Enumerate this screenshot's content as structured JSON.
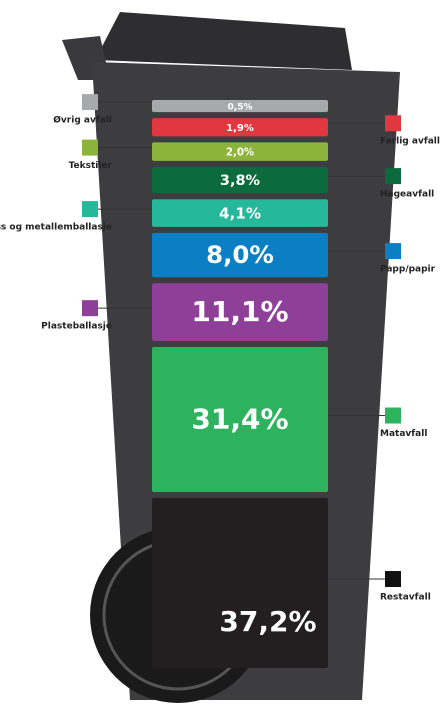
{
  "chart_data": {
    "type": "stacked_bin",
    "categories": [
      "Øvrig avfall",
      "Farlig avfall",
      "Tekstiler",
      "Hageavfall",
      "Glass og metallemballasje",
      "Papp/papir",
      "Plasteballasje",
      "Matavfall",
      "Restavfall"
    ],
    "values": [
      0.5,
      1.9,
      2.0,
      3.8,
      4.1,
      8.0,
      11.1,
      31.4,
      37.2
    ],
    "value_labels": [
      "0,5%",
      "1,9%",
      "2,0%",
      "3,8%",
      "4,1%",
      "8,0%",
      "11,1%",
      "31,4%",
      "37,2%"
    ],
    "colors": [
      "#a7a9ac",
      "#e0383e",
      "#8cb43c",
      "#0c6b3c",
      "#25b89a",
      "#0a7fc4",
      "#8e3f97",
      "#2db35d",
      "#231f20"
    ]
  }
}
